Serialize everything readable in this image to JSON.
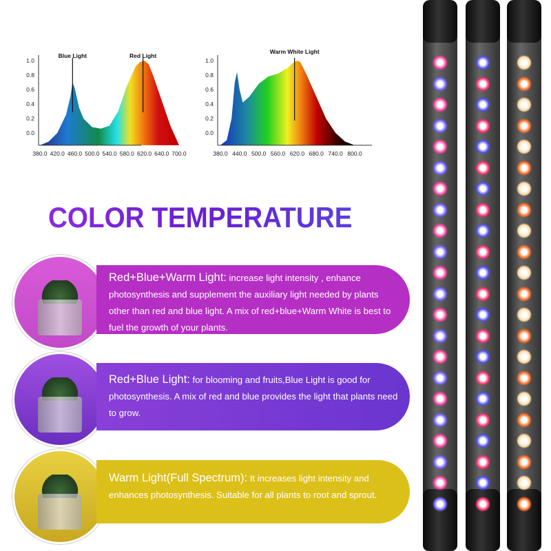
{
  "title": "COLOR TEMPERATURE",
  "chart_data": [
    {
      "type": "area",
      "annotations": [
        "Blue Light",
        "Red Light"
      ],
      "x": [
        380,
        400,
        420,
        440,
        450,
        455,
        460,
        470,
        480,
        500,
        520,
        540,
        560,
        580,
        600,
        610,
        620,
        630,
        640,
        660,
        680,
        700
      ],
      "y": [
        -0.17,
        -0.12,
        0.0,
        0.25,
        0.5,
        0.7,
        0.62,
        0.35,
        0.2,
        0.08,
        0.06,
        0.1,
        0.3,
        0.65,
        0.92,
        0.98,
        1.0,
        0.95,
        0.8,
        0.45,
        0.1,
        -0.17
      ],
      "xticks": [
        "380.0",
        "420.0",
        "460.0",
        "500.0",
        "540.0",
        "580.0",
        "620.0",
        "640.0",
        "700.0"
      ],
      "yticks": [
        "0.0",
        "0.2",
        "0.4",
        "0.6",
        "0.8",
        "1.0"
      ],
      "ylim": [
        -0.17,
        1.05
      ]
    },
    {
      "type": "area",
      "annotations": [
        "Warm White Light"
      ],
      "x": [
        380,
        400,
        415,
        425,
        432,
        440,
        450,
        470,
        500,
        530,
        560,
        590,
        610,
        620,
        630,
        650,
        680,
        710,
        740,
        770,
        800
      ],
      "y": [
        -0.17,
        -0.1,
        0.2,
        0.7,
        0.84,
        0.6,
        0.42,
        0.5,
        0.68,
        0.78,
        0.82,
        0.9,
        0.98,
        1.0,
        0.98,
        0.8,
        0.5,
        0.2,
        0.0,
        -0.12,
        -0.17
      ],
      "xticks": [
        "380.0",
        "440.0",
        "500.0",
        "560.0",
        "620.0",
        "680.0",
        "740.0",
        "800.0"
      ],
      "yticks": [
        "0.0",
        "0.2",
        "0.4",
        "0.6",
        "0.8",
        "1.0"
      ],
      "ylim": [
        -0.17,
        1.05
      ]
    }
  ],
  "cards": [
    {
      "heading": "Red+Blue+Warm Light:",
      "body": " increase light intensity , enhance photosynthesis and supplement the auxiliary light needed by plants other than red and blue light. A mix of red+blue+Warm White is best to fuel the growth of your plants.",
      "color": "#b52fc4"
    },
    {
      "heading": "Red+Blue Light:",
      "body": " for blooming and fruits,Blue Light is good for photosynthesis. A mix of red and blue provides the light that plants need to grow.",
      "color": "#7b3fd8"
    },
    {
      "heading": "Warm Light(Full Spectrum):",
      "body": " It increases light intensity and enhances photosynthesis. Suitable for all plants to root and sprout.",
      "color": "#dcc01a"
    }
  ],
  "lamps": [
    "red-blue-warm",
    "red-blue",
    "warm"
  ]
}
